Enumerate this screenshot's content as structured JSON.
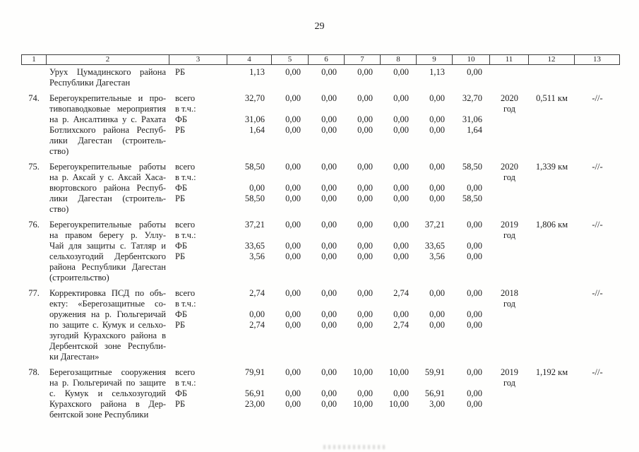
{
  "page": {
    "number": "29"
  },
  "table": {
    "column_headers": [
      "1",
      "2",
      "3",
      "4",
      "5",
      "6",
      "7",
      "8",
      "9",
      "10",
      "11",
      "12",
      "13"
    ],
    "entries": [
      {
        "num": "",
        "desc_lines": [
          "Урух Цумадинского района",
          "Республики Дагестан"
        ],
        "lines": [
          {
            "label": "РБ",
            "values": [
              "1,13",
              "0,00",
              "0,00",
              "0,00",
              "0,00",
              "1,13",
              "0,00"
            ]
          }
        ],
        "year": "",
        "length": "",
        "note": ""
      },
      {
        "num": "74.",
        "desc_lines": [
          "Берегоукрепительные и про-",
          "тивопаводковые мероприятия",
          "на р. Ансалтинка у с. Рахата",
          "Ботлихского района Респуб-",
          "лики Дагестан (строитель-",
          "ство)"
        ],
        "lines": [
          {
            "label": "всего",
            "values": [
              "32,70",
              "0,00",
              "0,00",
              "0,00",
              "0,00",
              "0,00",
              "32,70"
            ]
          },
          {
            "label": "в т.ч.:"
          },
          {
            "label": "ФБ",
            "values": [
              "31,06",
              "0,00",
              "0,00",
              "0,00",
              "0,00",
              "0,00",
              "31,06"
            ]
          },
          {
            "label": "РБ",
            "values": [
              "1,64",
              "0,00",
              "0,00",
              "0,00",
              "0,00",
              "0,00",
              "1,64"
            ]
          }
        ],
        "year": "2020\nгод",
        "length": "0,511 км",
        "note": "-//-"
      },
      {
        "num": "75.",
        "desc_lines": [
          "Берегоукрепительные работы",
          "на р. Аксай у с. Аксай Хаса-",
          "вюртовского района Респуб-",
          "лики Дагестан (строитель-",
          "ство)"
        ],
        "lines": [
          {
            "label": "всего",
            "values": [
              "58,50",
              "0,00",
              "0,00",
              "0,00",
              "0,00",
              "0,00",
              "58,50"
            ]
          },
          {
            "label": "в т.ч.:"
          },
          {
            "label": "ФБ",
            "values": [
              "0,00",
              "0,00",
              "0,00",
              "0,00",
              "0,00",
              "0,00",
              "0,00"
            ]
          },
          {
            "label": "РБ",
            "values": [
              "58,50",
              "0,00",
              "0,00",
              "0,00",
              "0,00",
              "0,00",
              "58,50"
            ]
          }
        ],
        "year": "2020\nгод",
        "length": "1,339 км",
        "note": "-//-"
      },
      {
        "num": "76.",
        "desc_lines": [
          "Берегоукрепительные работы",
          "на правом берегу р. Уллу-",
          "Чай для защиты с. Татляр и",
          "сельхозугодий Дербентского",
          "района Республики Дагестан",
          "(строительство)"
        ],
        "lines": [
          {
            "label": "всего",
            "values": [
              "37,21",
              "0,00",
              "0,00",
              "0,00",
              "0,00",
              "37,21",
              "0,00"
            ]
          },
          {
            "label": "в т.ч.:"
          },
          {
            "label": "ФБ",
            "values": [
              "33,65",
              "0,00",
              "0,00",
              "0,00",
              "0,00",
              "33,65",
              "0,00"
            ]
          },
          {
            "label": "РБ",
            "values": [
              "3,56",
              "0,00",
              "0,00",
              "0,00",
              "0,00",
              "3,56",
              "0,00"
            ]
          }
        ],
        "year": "2019\nгод",
        "length": "1,806 км",
        "note": "-//-"
      },
      {
        "num": "77.",
        "desc_lines": [
          "Корректировка ПСД по объ-",
          "екту: «Берегозащитные со-",
          "оружения на р. Гюльгеричай",
          "по защите с. Кумук и сельхо-",
          "зугодий Курахского района в",
          "Дербентской зоне Республи-",
          "ки Дагестан»"
        ],
        "lines": [
          {
            "label": "всего",
            "values": [
              "2,74",
              "0,00",
              "0,00",
              "0,00",
              "2,74",
              "0,00",
              "0,00"
            ]
          },
          {
            "label": "в т.ч.:"
          },
          {
            "label": "ФБ",
            "values": [
              "0,00",
              "0,00",
              "0,00",
              "0,00",
              "0,00",
              "0,00",
              "0,00"
            ]
          },
          {
            "label": "РБ",
            "values": [
              "2,74",
              "0,00",
              "0,00",
              "0,00",
              "2,74",
              "0,00",
              "0,00"
            ]
          }
        ],
        "year": "2018\nгод",
        "length": "",
        "note": "-//-"
      },
      {
        "num": "78.",
        "desc_lines": [
          "Берегозащитные сооружения",
          "на р. Гюльгеричай по защите",
          "с. Кумук и сельхозугодий",
          "Курахского района в Дер-",
          "бентской зоне Республики"
        ],
        "lines": [
          {
            "label": "всего",
            "values": [
              "79,91",
              "0,00",
              "0,00",
              "10,00",
              "10,00",
              "59,91",
              "0,00"
            ]
          },
          {
            "label": "в т.ч.:"
          },
          {
            "label": "ФБ",
            "values": [
              "56,91",
              "0,00",
              "0,00",
              "0,00",
              "0,00",
              "56,91",
              "0,00"
            ]
          },
          {
            "label": "РБ",
            "values": [
              "23,00",
              "0,00",
              "0,00",
              "10,00",
              "10,00",
              "3,00",
              "0,00"
            ]
          }
        ],
        "year": "2019\nгод",
        "length": "1,192 км",
        "note": "-//-"
      }
    ]
  }
}
